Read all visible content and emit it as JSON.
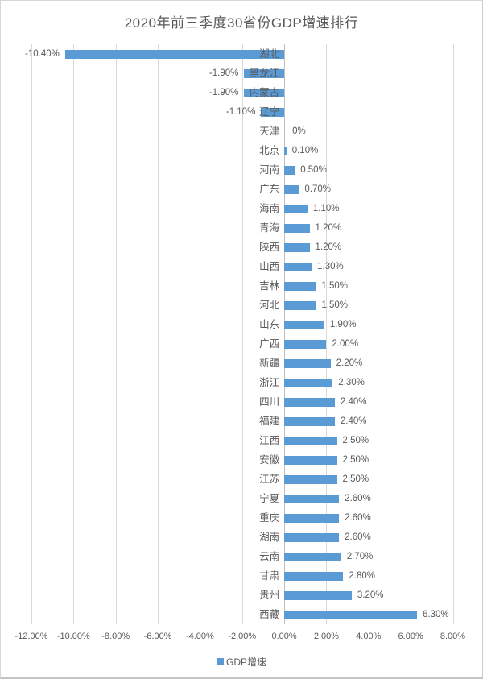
{
  "chart": {
    "legend_label": "GDP增速",
    "colors": {
      "bar": "#5B9BD5",
      "gridline": "#D9D9D9",
      "zero_axis": "#BFBFBF",
      "text": "#595959"
    }
  },
  "chart_data": {
    "type": "bar",
    "orientation": "horizontal",
    "title": "2020年前三季度30省份GDP增速排行",
    "legend_entries": [
      "GDP增速"
    ],
    "legend_position": "bottom",
    "grid": true,
    "xlim": [
      -12,
      8
    ],
    "x_tick_values": [
      -12,
      -10,
      -8,
      -6,
      -4,
      -2,
      0,
      2,
      4,
      6,
      8
    ],
    "x_tick_labels": [
      "-12.00%",
      "-10.00%",
      "-8.00%",
      "-6.00%",
      "-4.00%",
      "-2.00%",
      "0.00%",
      "2.00%",
      "4.00%",
      "6.00%",
      "8.00%"
    ],
    "categories": [
      "湖北",
      "黑龙江",
      "内蒙古",
      "辽宁",
      "天津",
      "北京",
      "河南",
      "广东",
      "海南",
      "青海",
      "陕西",
      "山西",
      "吉林",
      "河北",
      "山东",
      "广西",
      "新疆",
      "浙江",
      "四川",
      "福建",
      "江西",
      "安徽",
      "江苏",
      "宁夏",
      "重庆",
      "湖南",
      "云南",
      "甘肃",
      "贵州",
      "西藏"
    ],
    "values": [
      -10.4,
      -1.9,
      -1.9,
      -1.1,
      0,
      0.1,
      0.5,
      0.7,
      1.1,
      1.2,
      1.2,
      1.3,
      1.5,
      1.5,
      1.9,
      2.0,
      2.2,
      2.3,
      2.4,
      2.4,
      2.5,
      2.5,
      2.5,
      2.6,
      2.6,
      2.6,
      2.7,
      2.8,
      3.2,
      6.3
    ],
    "data_labels": [
      "-10.40%",
      "-1.90%",
      "-1.90%",
      "-1.10%",
      "0%",
      "0.10%",
      "0.50%",
      "0.70%",
      "1.10%",
      "1.20%",
      "1.20%",
      "1.30%",
      "1.50%",
      "1.50%",
      "1.90%",
      "2.00%",
      "2.20%",
      "2.30%",
      "2.40%",
      "2.40%",
      "2.50%",
      "2.50%",
      "2.50%",
      "2.60%",
      "2.60%",
      "2.60%",
      "2.70%",
      "2.80%",
      "3.20%",
      "6.30%"
    ]
  }
}
